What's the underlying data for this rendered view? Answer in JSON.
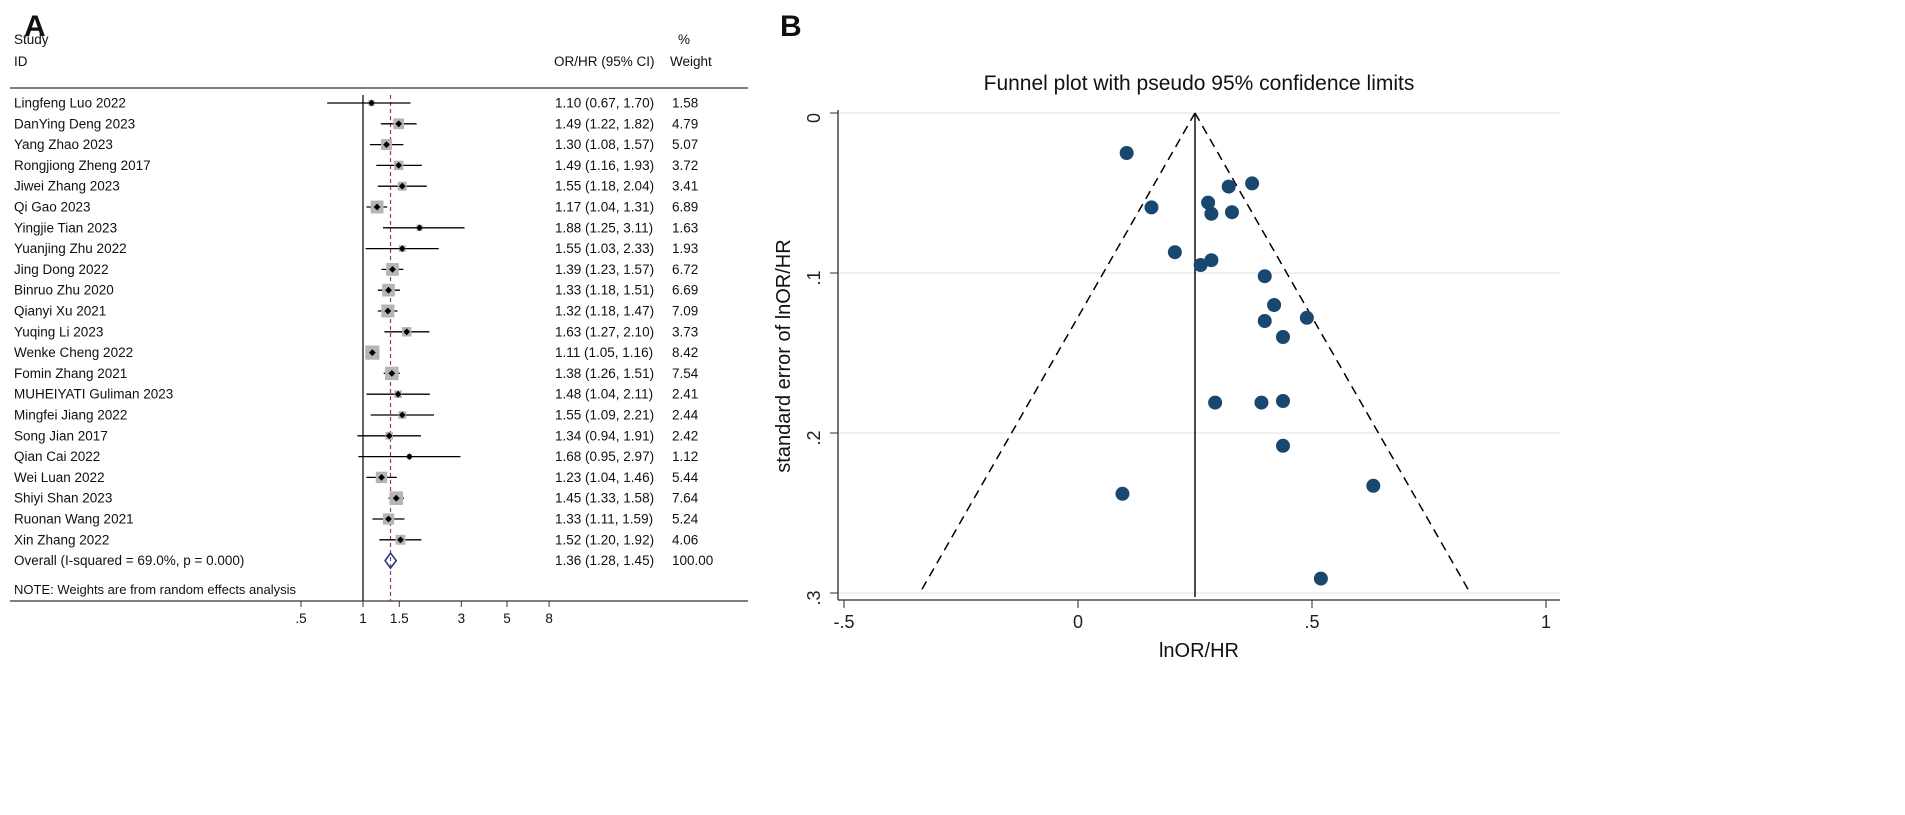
{
  "panel_a": {
    "label": "A",
    "col_study": "Study",
    "col_id": "ID",
    "col_or": "OR/HR (95% CI)",
    "col_pct": "%",
    "col_weight": "Weight",
    "note": "NOTE: Weights are from random effects analysis"
  },
  "panel_b": {
    "label": "B"
  },
  "colors": {
    "square": "#b5b5b5",
    "marker": "#000000",
    "overall_diamond": "#2d3a8c",
    "overall_line": "#9a3b4f",
    "null_line": "#000000",
    "funnel_point": "#1a476f",
    "grid": "#e8e8e8",
    "axis": "#2b2b2b"
  },
  "chart_data": [
    {
      "type": "forest",
      "title": "",
      "x_axis": {
        "scale": "log",
        "null_line": 1
      },
      "x_ticks": [
        {
          "v": 0.5,
          "label": ".5"
        },
        {
          "v": 1,
          "label": "1"
        },
        {
          "v": 1.5,
          "label": "1.5"
        },
        {
          "v": 3,
          "label": "3"
        },
        {
          "v": 5,
          "label": "5"
        },
        {
          "v": 8,
          "label": "8"
        }
      ],
      "studies": [
        {
          "id": "Lingfeng Luo 2022",
          "or": 1.1,
          "lo": 0.67,
          "hi": 1.7,
          "weight": 1.58,
          "ci_label": "1.10 (0.67, 1.70)",
          "weight_label": "1.58"
        },
        {
          "id": "DanYing Deng 2023",
          "or": 1.49,
          "lo": 1.22,
          "hi": 1.82,
          "weight": 4.79,
          "ci_label": "1.49 (1.22, 1.82)",
          "weight_label": "4.79"
        },
        {
          "id": "Yang Zhao 2023",
          "or": 1.3,
          "lo": 1.08,
          "hi": 1.57,
          "weight": 5.07,
          "ci_label": "1.30 (1.08, 1.57)",
          "weight_label": "5.07"
        },
        {
          "id": "Rongjiong Zheng 2017",
          "or": 1.49,
          "lo": 1.16,
          "hi": 1.93,
          "weight": 3.72,
          "ci_label": "1.49 (1.16, 1.93)",
          "weight_label": "3.72"
        },
        {
          "id": "Jiwei Zhang 2023",
          "or": 1.55,
          "lo": 1.18,
          "hi": 2.04,
          "weight": 3.41,
          "ci_label": "1.55 (1.18, 2.04)",
          "weight_label": "3.41"
        },
        {
          "id": "Qi Gao 2023",
          "or": 1.17,
          "lo": 1.04,
          "hi": 1.31,
          "weight": 6.89,
          "ci_label": "1.17 (1.04, 1.31)",
          "weight_label": "6.89"
        },
        {
          "id": "Yingjie Tian 2023",
          "or": 1.88,
          "lo": 1.25,
          "hi": 3.11,
          "weight": 1.63,
          "ci_label": "1.88 (1.25, 3.11)",
          "weight_label": "1.63"
        },
        {
          "id": "Yuanjing Zhu 2022",
          "or": 1.55,
          "lo": 1.03,
          "hi": 2.33,
          "weight": 1.93,
          "ci_label": "1.55 (1.03, 2.33)",
          "weight_label": "1.93"
        },
        {
          "id": "Jing Dong 2022",
          "or": 1.39,
          "lo": 1.23,
          "hi": 1.57,
          "weight": 6.72,
          "ci_label": "1.39 (1.23, 1.57)",
          "weight_label": "6.72"
        },
        {
          "id": "Binruo Zhu 2020",
          "or": 1.33,
          "lo": 1.18,
          "hi": 1.51,
          "weight": 6.69,
          "ci_label": "1.33 (1.18, 1.51)",
          "weight_label": "6.69"
        },
        {
          "id": "Qianyi Xu 2021",
          "or": 1.32,
          "lo": 1.18,
          "hi": 1.47,
          "weight": 7.09,
          "ci_label": "1.32 (1.18, 1.47)",
          "weight_label": "7.09"
        },
        {
          "id": "Yuqing Li 2023",
          "or": 1.63,
          "lo": 1.27,
          "hi": 2.1,
          "weight": 3.73,
          "ci_label": "1.63 (1.27, 2.10)",
          "weight_label": "3.73"
        },
        {
          "id": "Wenke Cheng 2022",
          "or": 1.11,
          "lo": 1.05,
          "hi": 1.16,
          "weight": 8.42,
          "ci_label": "1.11 (1.05, 1.16)",
          "weight_label": "8.42"
        },
        {
          "id": "Fomin Zhang 2021",
          "or": 1.38,
          "lo": 1.26,
          "hi": 1.51,
          "weight": 7.54,
          "ci_label": "1.38 (1.26, 1.51)",
          "weight_label": "7.54"
        },
        {
          "id": "MUHEIYATI Guliman 2023",
          "or": 1.48,
          "lo": 1.04,
          "hi": 2.11,
          "weight": 2.41,
          "ci_label": "1.48 (1.04, 2.11)",
          "weight_label": "2.41"
        },
        {
          "id": "Mingfei Jiang 2022",
          "or": 1.55,
          "lo": 1.09,
          "hi": 2.21,
          "weight": 2.44,
          "ci_label": "1.55 (1.09, 2.21)",
          "weight_label": "2.44"
        },
        {
          "id": "Song Jian 2017",
          "or": 1.34,
          "lo": 0.94,
          "hi": 1.91,
          "weight": 2.42,
          "ci_label": "1.34 (0.94, 1.91)",
          "weight_label": "2.42"
        },
        {
          "id": "Qian Cai 2022",
          "or": 1.68,
          "lo": 0.95,
          "hi": 2.97,
          "weight": 1.12,
          "ci_label": "1.68 (0.95, 2.97)",
          "weight_label": "1.12"
        },
        {
          "id": "Wei Luan 2022",
          "or": 1.23,
          "lo": 1.04,
          "hi": 1.46,
          "weight": 5.44,
          "ci_label": "1.23 (1.04, 1.46)",
          "weight_label": "5.44"
        },
        {
          "id": "Shiyi Shan 2023",
          "or": 1.45,
          "lo": 1.33,
          "hi": 1.58,
          "weight": 7.64,
          "ci_label": "1.45 (1.33, 1.58)",
          "weight_label": "7.64"
        },
        {
          "id": "Ruonan Wang 2021",
          "or": 1.33,
          "lo": 1.11,
          "hi": 1.59,
          "weight": 5.24,
          "ci_label": "1.33 (1.11, 1.59)",
          "weight_label": "5.24"
        },
        {
          "id": "Xin Zhang 2022",
          "or": 1.52,
          "lo": 1.2,
          "hi": 1.92,
          "weight": 4.06,
          "ci_label": "1.52 (1.20, 1.92)",
          "weight_label": "4.06"
        }
      ],
      "overall": {
        "id": "Overall  (I-squared = 69.0%, p = 0.000)",
        "or": 1.36,
        "lo": 1.28,
        "hi": 1.45,
        "ci_label": "1.36 (1.28, 1.45)",
        "weight_label": "100.00"
      }
    },
    {
      "type": "scatter",
      "title": "Funnel plot with pseudo 95% confidence limits",
      "xlabel": "lnOR/HR",
      "ylabel": "standard error of lnOR/HR",
      "xlim": [
        -0.5,
        1
      ],
      "ylim": [
        0,
        0.3
      ],
      "y_reversed": true,
      "grid": "horizontal",
      "center": 0.25,
      "pseudo_ci_multiplier": 1.96,
      "x_ticks": [
        {
          "v": -0.5,
          "label": "-.5"
        },
        {
          "v": 0,
          "label": "0"
        },
        {
          "v": 0.5,
          "label": ".5"
        },
        {
          "v": 1,
          "label": "1"
        }
      ],
      "y_ticks": [
        {
          "v": 0,
          "label": "0"
        },
        {
          "v": 0.1,
          "label": ".1"
        },
        {
          "v": 0.2,
          "label": ".2"
        },
        {
          "v": 0.3,
          "label": ".3"
        }
      ],
      "points": [
        [
          0.095,
          0.238
        ],
        [
          0.399,
          0.102
        ],
        [
          0.262,
          0.095
        ],
        [
          0.399,
          0.13
        ],
        [
          0.438,
          0.14
        ],
        [
          0.157,
          0.059
        ],
        [
          0.631,
          0.233
        ],
        [
          0.438,
          0.208
        ],
        [
          0.329,
          0.062
        ],
        [
          0.285,
          0.063
        ],
        [
          0.278,
          0.056
        ],
        [
          0.489,
          0.128
        ],
        [
          0.104,
          0.025
        ],
        [
          0.322,
          0.046
        ],
        [
          0.392,
          0.181
        ],
        [
          0.438,
          0.18
        ],
        [
          0.293,
          0.181
        ],
        [
          0.519,
          0.291
        ],
        [
          0.207,
          0.087
        ],
        [
          0.372,
          0.044
        ],
        [
          0.285,
          0.092
        ],
        [
          0.419,
          0.12
        ]
      ]
    }
  ]
}
